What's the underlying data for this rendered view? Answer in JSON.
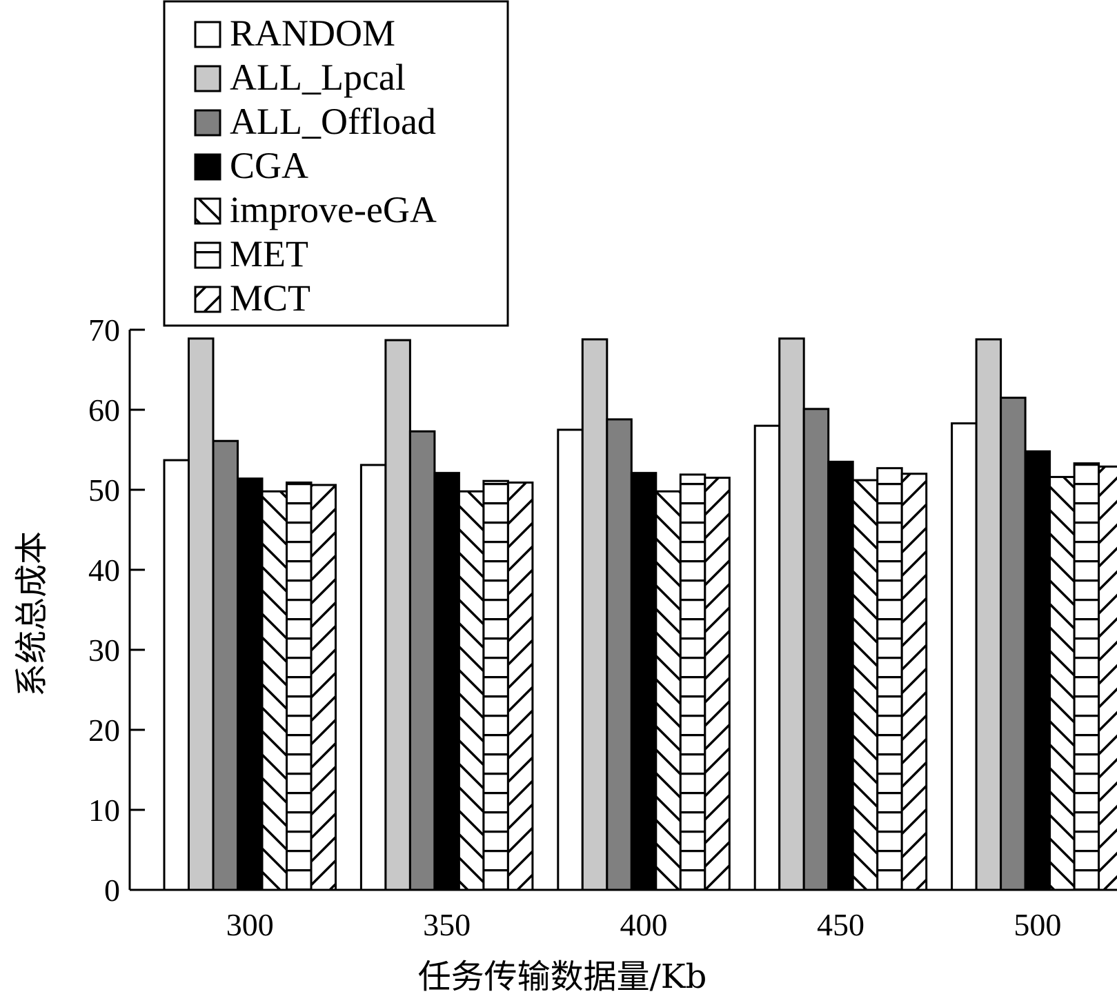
{
  "chart_data": {
    "type": "bar",
    "xlabel": "任务传输数据量/Kb",
    "ylabel": "系统总成本",
    "ylim": [
      0,
      70
    ],
    "yticks": [
      0,
      10,
      20,
      30,
      40,
      50,
      60,
      70
    ],
    "categories": [
      "300",
      "350",
      "400",
      "450",
      "500"
    ],
    "legend_position": "top-left",
    "series": [
      {
        "name": "RANDOM",
        "pattern": "white",
        "values": [
          53.7,
          53.1,
          57.5,
          58.0,
          58.3
        ]
      },
      {
        "name": "ALL_Lpcal",
        "pattern": "light-gray",
        "values": [
          68.9,
          68.7,
          68.8,
          68.9,
          68.8
        ]
      },
      {
        "name": "ALL_Offload",
        "pattern": "dark-gray",
        "values": [
          56.1,
          57.3,
          58.8,
          60.1,
          61.5
        ]
      },
      {
        "name": "CGA",
        "pattern": "black",
        "values": [
          51.4,
          52.1,
          52.1,
          53.5,
          54.8
        ]
      },
      {
        "name": "improve-eGA",
        "pattern": "backslash-hatch",
        "values": [
          49.8,
          49.8,
          49.8,
          51.2,
          51.6
        ]
      },
      {
        "name": "MET",
        "pattern": "horizontal-stripes",
        "values": [
          50.9,
          51.1,
          51.9,
          52.7,
          53.3
        ]
      },
      {
        "name": "MCT",
        "pattern": "slash-hatch",
        "values": [
          50.6,
          50.9,
          51.5,
          52.0,
          52.9
        ]
      }
    ]
  }
}
